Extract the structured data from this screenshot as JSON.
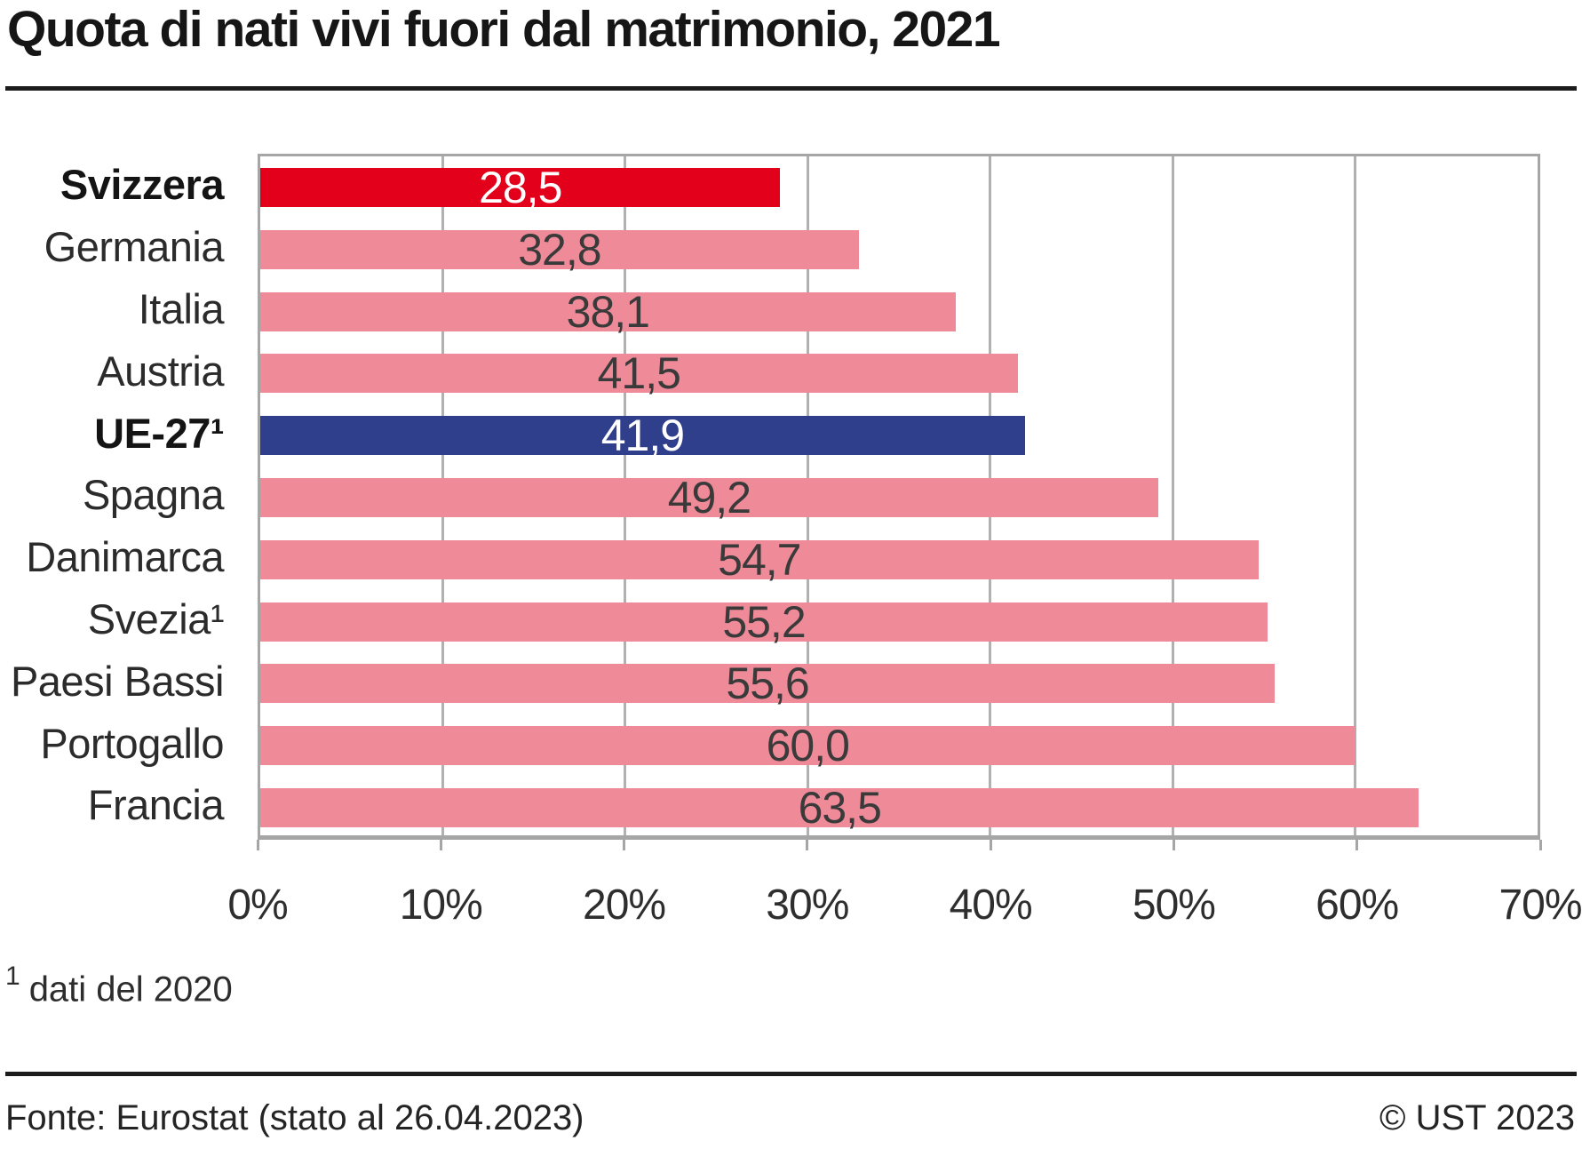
{
  "header": {
    "title": "Quota di nati vivi fuori dal matrimonio, 2021"
  },
  "colors": {
    "bar_switzerland": "#e2001a",
    "bar_eu": "#2f3f8c",
    "bar_default": "#ef8b98",
    "grid": "#b1b1b1",
    "axis": "#a6a6a6",
    "rule": "#1c1c1c"
  },
  "chart_data": {
    "type": "bar",
    "orientation": "horizontal",
    "title": "Quota di nati vivi fuori dal matrimonio, 2021",
    "categories": [
      "Svizzera",
      "Germania",
      "Italia",
      "Austria",
      "UE-27¹",
      "Spagna",
      "Danimarca",
      "Svezia¹",
      "Paesi Bassi",
      "Portogallo",
      "Francia"
    ],
    "values": [
      28.5,
      32.8,
      38.1,
      41.5,
      41.9,
      49.2,
      54.7,
      55.2,
      55.6,
      60.0,
      63.5
    ],
    "value_labels": [
      "28,5",
      "32,8",
      "38,1",
      "41,5",
      "41,9",
      "49,2",
      "54,7",
      "55,2",
      "55,6",
      "60,0",
      "63,5"
    ],
    "bar_styles": [
      "bar_switzerland",
      "bar_default",
      "bar_default",
      "bar_default",
      "bar_eu",
      "bar_default",
      "bar_default",
      "bar_default",
      "bar_default",
      "bar_default",
      "bar_default"
    ],
    "emphasized_indexes": [
      0,
      4
    ],
    "xlim": [
      0,
      70
    ],
    "x_tick_labels": [
      "0%",
      "10%",
      "20%",
      "30%",
      "40%",
      "50%",
      "60%",
      "70%"
    ],
    "grid": "vertical",
    "legend": "none"
  },
  "footnote": {
    "marker": "1",
    "text": "dati del 2020"
  },
  "footer": {
    "source": "Fonte: Eurostat (stato al 26.04.2023)",
    "copyright": "© UST 2023"
  }
}
